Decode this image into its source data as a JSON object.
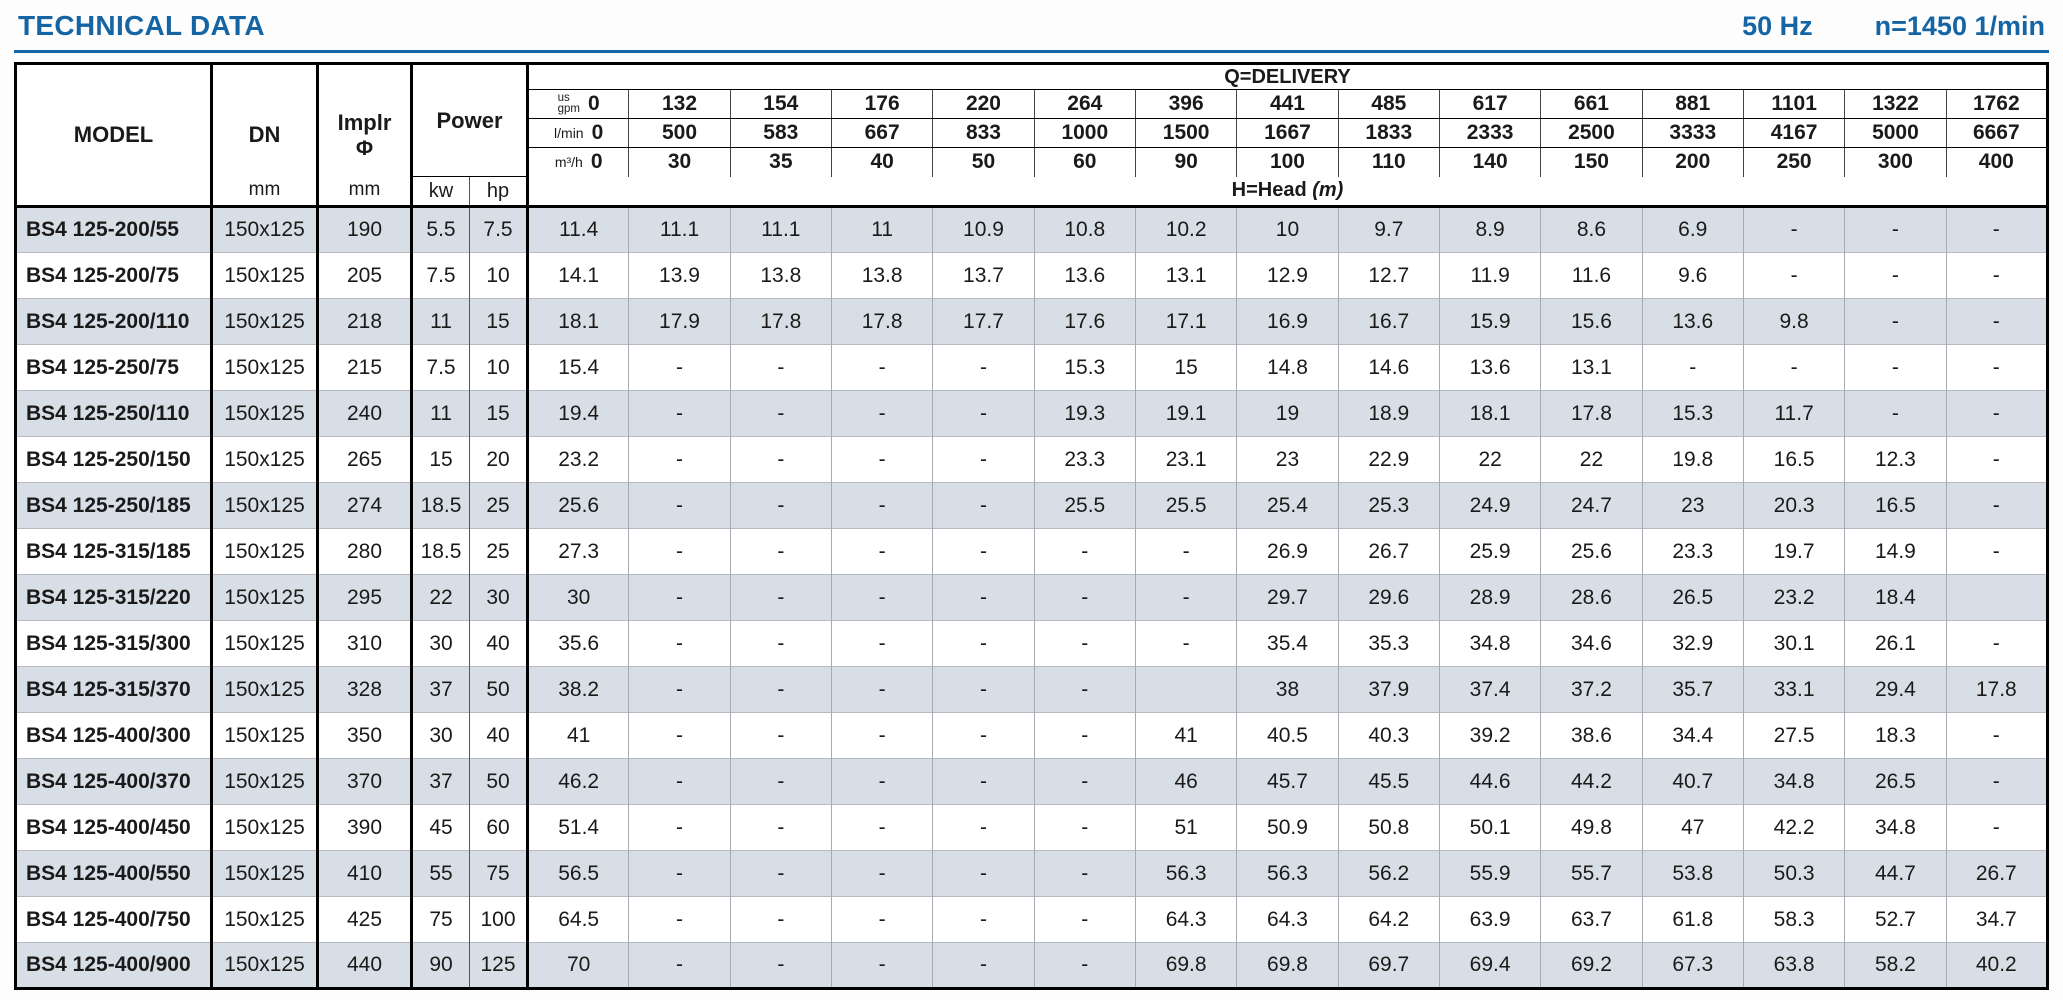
{
  "page": {
    "title": "TECHNICAL DATA",
    "frequency": "50 Hz",
    "speed": "n=1450 1/min",
    "accent_color": "#1565a4",
    "stripe_color": "#d8dee5"
  },
  "table": {
    "headers": {
      "model": "MODEL",
      "dn": "DN",
      "dn_unit": "mm",
      "implr_line1": "Implr",
      "implr_line2": "Φ",
      "implr_unit": "mm",
      "power": "Power",
      "kw": "kw",
      "hp": "hp",
      "delivery": "Q=DELIVERY",
      "head": "H=Head",
      "head_unit": "(m)"
    },
    "flow_units": {
      "usgpm_line1": "us",
      "usgpm_line2": "gpm",
      "lmin": "l/min",
      "m3h": "m³/h"
    },
    "flow_values": {
      "usgpm": [
        "0",
        "132",
        "154",
        "176",
        "220",
        "264",
        "396",
        "441",
        "485",
        "617",
        "661",
        "881",
        "1101",
        "1322",
        "1762"
      ],
      "lmin": [
        "0",
        "500",
        "583",
        "667",
        "833",
        "1000",
        "1500",
        "1667",
        "1833",
        "2333",
        "2500",
        "3333",
        "4167",
        "5000",
        "6667"
      ],
      "m3h": [
        "0",
        "30",
        "35",
        "40",
        "50",
        "60",
        "90",
        "100",
        "110",
        "140",
        "150",
        "200",
        "250",
        "300",
        "400"
      ]
    },
    "rows": [
      {
        "model": "BS4 125-200/55",
        "dn": "150x125",
        "implr": "190",
        "kw": "5.5",
        "hp": "7.5",
        "head": [
          "11.4",
          "11.1",
          "11.1",
          "11",
          "10.9",
          "10.8",
          "10.2",
          "10",
          "9.7",
          "8.9",
          "8.6",
          "6.9",
          "-",
          "-",
          "-"
        ]
      },
      {
        "model": "BS4 125-200/75",
        "dn": "150x125",
        "implr": "205",
        "kw": "7.5",
        "hp": "10",
        "head": [
          "14.1",
          "13.9",
          "13.8",
          "13.8",
          "13.7",
          "13.6",
          "13.1",
          "12.9",
          "12.7",
          "11.9",
          "11.6",
          "9.6",
          "-",
          "-",
          "-"
        ]
      },
      {
        "model": "BS4 125-200/110",
        "dn": "150x125",
        "implr": "218",
        "kw": "11",
        "hp": "15",
        "head": [
          "18.1",
          "17.9",
          "17.8",
          "17.8",
          "17.7",
          "17.6",
          "17.1",
          "16.9",
          "16.7",
          "15.9",
          "15.6",
          "13.6",
          "9.8",
          "-",
          "-"
        ]
      },
      {
        "model": "BS4 125-250/75",
        "dn": "150x125",
        "implr": "215",
        "kw": "7.5",
        "hp": "10",
        "head": [
          "15.4",
          "-",
          "-",
          "-",
          "-",
          "15.3",
          "15",
          "14.8",
          "14.6",
          "13.6",
          "13.1",
          "-",
          "-",
          "-",
          "-"
        ]
      },
      {
        "model": "BS4 125-250/110",
        "dn": "150x125",
        "implr": "240",
        "kw": "11",
        "hp": "15",
        "head": [
          "19.4",
          "-",
          "-",
          "-",
          "-",
          "19.3",
          "19.1",
          "19",
          "18.9",
          "18.1",
          "17.8",
          "15.3",
          "11.7",
          "-",
          "-"
        ]
      },
      {
        "model": "BS4 125-250/150",
        "dn": "150x125",
        "implr": "265",
        "kw": "15",
        "hp": "20",
        "head": [
          "23.2",
          "-",
          "-",
          "-",
          "-",
          "23.3",
          "23.1",
          "23",
          "22.9",
          "22",
          "22",
          "19.8",
          "16.5",
          "12.3",
          "-"
        ]
      },
      {
        "model": "BS4 125-250/185",
        "dn": "150x125",
        "implr": "274",
        "kw": "18.5",
        "hp": "25",
        "head": [
          "25.6",
          "-",
          "-",
          "-",
          "-",
          "25.5",
          "25.5",
          "25.4",
          "25.3",
          "24.9",
          "24.7",
          "23",
          "20.3",
          "16.5",
          "-"
        ]
      },
      {
        "model": "BS4 125-315/185",
        "dn": "150x125",
        "implr": "280",
        "kw": "18.5",
        "hp": "25",
        "head": [
          "27.3",
          "-",
          "-",
          "-",
          "-",
          "-",
          "-",
          "26.9",
          "26.7",
          "25.9",
          "25.6",
          "23.3",
          "19.7",
          "14.9",
          "-"
        ]
      },
      {
        "model": "BS4 125-315/220",
        "dn": "150x125",
        "implr": "295",
        "kw": "22",
        "hp": "30",
        "head": [
          "30",
          "-",
          "-",
          "-",
          "-",
          "-",
          "-",
          "29.7",
          "29.6",
          "28.9",
          "28.6",
          "26.5",
          "23.2",
          "18.4",
          ""
        ]
      },
      {
        "model": "BS4 125-315/300",
        "dn": "150x125",
        "implr": "310",
        "kw": "30",
        "hp": "40",
        "head": [
          "35.6",
          "-",
          "-",
          "-",
          "-",
          "-",
          "-",
          "35.4",
          "35.3",
          "34.8",
          "34.6",
          "32.9",
          "30.1",
          "26.1",
          "-"
        ]
      },
      {
        "model": "BS4 125-315/370",
        "dn": "150x125",
        "implr": "328",
        "kw": "37",
        "hp": "50",
        "head": [
          "38.2",
          "-",
          "-",
          "-",
          "-",
          "-",
          "",
          "38",
          "37.9",
          "37.4",
          "37.2",
          "35.7",
          "33.1",
          "29.4",
          "17.8"
        ]
      },
      {
        "model": "BS4 125-400/300",
        "dn": "150x125",
        "implr": "350",
        "kw": "30",
        "hp": "40",
        "head": [
          "41",
          "-",
          "-",
          "-",
          "-",
          "-",
          "41",
          "40.5",
          "40.3",
          "39.2",
          "38.6",
          "34.4",
          "27.5",
          "18.3",
          "-"
        ]
      },
      {
        "model": "BS4 125-400/370",
        "dn": "150x125",
        "implr": "370",
        "kw": "37",
        "hp": "50",
        "head": [
          "46.2",
          "-",
          "-",
          "-",
          "-",
          "-",
          "46",
          "45.7",
          "45.5",
          "44.6",
          "44.2",
          "40.7",
          "34.8",
          "26.5",
          "-"
        ]
      },
      {
        "model": "BS4 125-400/450",
        "dn": "150x125",
        "implr": "390",
        "kw": "45",
        "hp": "60",
        "head": [
          "51.4",
          "-",
          "-",
          "-",
          "-",
          "-",
          "51",
          "50.9",
          "50.8",
          "50.1",
          "49.8",
          "47",
          "42.2",
          "34.8",
          "-"
        ]
      },
      {
        "model": "BS4 125-400/550",
        "dn": "150x125",
        "implr": "410",
        "kw": "55",
        "hp": "75",
        "head": [
          "56.5",
          "-",
          "-",
          "-",
          "-",
          "-",
          "56.3",
          "56.3",
          "56.2",
          "55.9",
          "55.7",
          "53.8",
          "50.3",
          "44.7",
          "26.7"
        ]
      },
      {
        "model": "BS4 125-400/750",
        "dn": "150x125",
        "implr": "425",
        "kw": "75",
        "hp": "100",
        "head": [
          "64.5",
          "-",
          "-",
          "-",
          "-",
          "-",
          "64.3",
          "64.3",
          "64.2",
          "63.9",
          "63.7",
          "61.8",
          "58.3",
          "52.7",
          "34.7"
        ]
      },
      {
        "model": "BS4 125-400/900",
        "dn": "150x125",
        "implr": "440",
        "kw": "90",
        "hp": "125",
        "head": [
          "70",
          "-",
          "-",
          "-",
          "-",
          "-",
          "69.8",
          "69.8",
          "69.7",
          "69.4",
          "69.2",
          "67.3",
          "63.8",
          "58.2",
          "40.2"
        ]
      }
    ]
  }
}
